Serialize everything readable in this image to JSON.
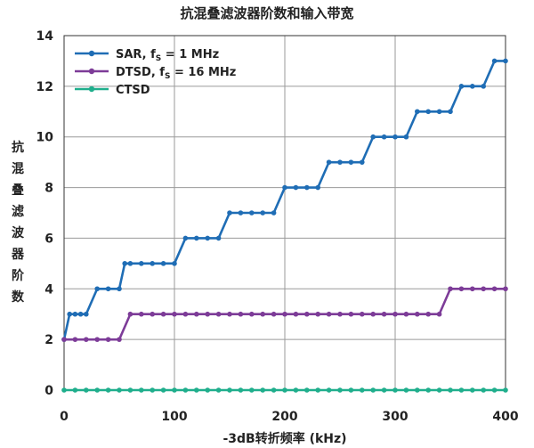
{
  "chart_data": {
    "type": "line",
    "title": "抗混叠滤波器阶数和输入带宽",
    "xlabel": "-3dB转折频率 (kHz)",
    "ylabel": "抗混叠滤波器阶数",
    "xlim": [
      0,
      400
    ],
    "ylim": [
      0,
      14
    ],
    "xticks": [
      0,
      100,
      200,
      300,
      400
    ],
    "yticks": [
      0,
      2,
      4,
      6,
      8,
      10,
      12,
      14
    ],
    "grid": true,
    "legend_position": "top-left",
    "series": [
      {
        "name": "SAR, f",
        "name_sub": "S",
        "name_suffix": " = 1 MHz",
        "color": "#1f6db5",
        "x": [
          0,
          5,
          10,
          15,
          20,
          30,
          40,
          50,
          55,
          60,
          70,
          80,
          90,
          100,
          110,
          120,
          130,
          140,
          150,
          160,
          170,
          180,
          190,
          200,
          210,
          220,
          230,
          240,
          250,
          260,
          270,
          280,
          290,
          300,
          310,
          320,
          330,
          340,
          350,
          360,
          370,
          380,
          390,
          400
        ],
        "y": [
          2,
          3,
          3,
          3,
          3,
          4,
          4,
          4,
          5,
          5,
          5,
          5,
          5,
          5,
          6,
          6,
          6,
          6,
          7,
          7,
          7,
          7,
          7,
          8,
          8,
          8,
          8,
          9,
          9,
          9,
          9,
          10,
          10,
          10,
          10,
          11,
          11,
          11,
          11,
          12,
          12,
          12,
          13,
          13
        ]
      },
      {
        "name": "DTSD, f",
        "name_sub": "S",
        "name_suffix": " = 16 MHz",
        "color": "#7d3c98",
        "x": [
          0,
          10,
          20,
          30,
          40,
          50,
          60,
          70,
          80,
          90,
          100,
          110,
          120,
          130,
          140,
          150,
          160,
          170,
          180,
          190,
          200,
          210,
          220,
          230,
          240,
          250,
          260,
          270,
          280,
          290,
          300,
          310,
          320,
          330,
          340,
          350,
          360,
          370,
          380,
          390,
          400
        ],
        "y": [
          2,
          2,
          2,
          2,
          2,
          2,
          3,
          3,
          3,
          3,
          3,
          3,
          3,
          3,
          3,
          3,
          3,
          3,
          3,
          3,
          3,
          3,
          3,
          3,
          3,
          3,
          3,
          3,
          3,
          3,
          3,
          3,
          3,
          3,
          3,
          4,
          4,
          4,
          4,
          4,
          4
        ]
      },
      {
        "name": "CTSD",
        "name_sub": "",
        "name_suffix": "",
        "color": "#1fae8c",
        "x": [
          0,
          10,
          20,
          30,
          40,
          50,
          60,
          70,
          80,
          90,
          100,
          110,
          120,
          130,
          140,
          150,
          160,
          170,
          180,
          190,
          200,
          210,
          220,
          230,
          240,
          250,
          260,
          270,
          280,
          290,
          300,
          310,
          320,
          330,
          340,
          350,
          360,
          370,
          380,
          390,
          400
        ],
        "y": [
          0,
          0,
          0,
          0,
          0,
          0,
          0,
          0,
          0,
          0,
          0,
          0,
          0,
          0,
          0,
          0,
          0,
          0,
          0,
          0,
          0,
          0,
          0,
          0,
          0,
          0,
          0,
          0,
          0,
          0,
          0,
          0,
          0,
          0,
          0,
          0,
          0,
          0,
          0,
          0,
          0
        ]
      }
    ]
  }
}
